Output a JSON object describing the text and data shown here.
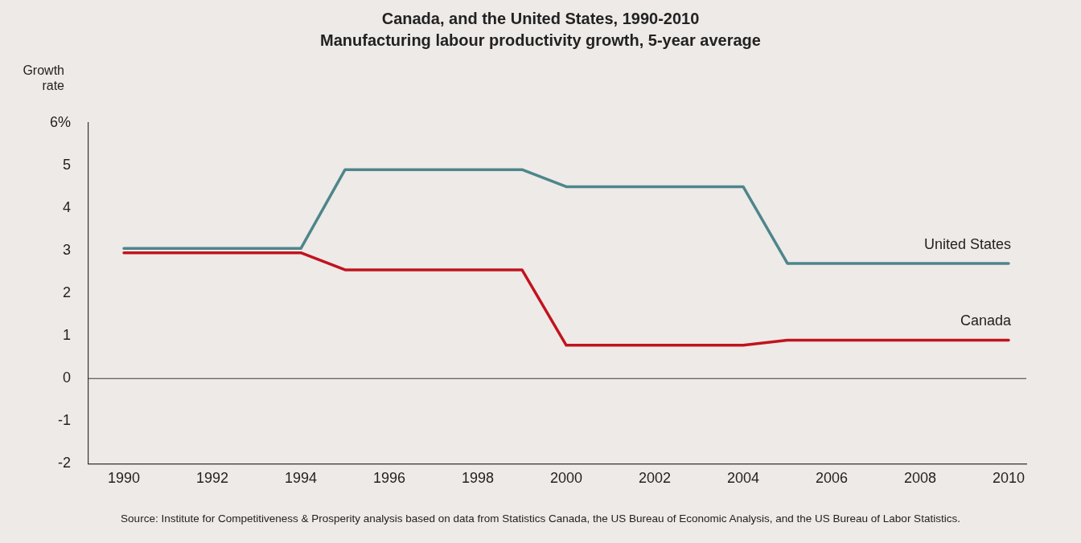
{
  "chart_data": {
    "type": "line",
    "title": "Canada, and the United States, 1990-2010",
    "subtitle": "Manufacturing labour productivity growth, 5-year average",
    "ylabel": "Growth rate",
    "x": [
      1990,
      1991,
      1992,
      1993,
      1994,
      1995,
      1996,
      1997,
      1998,
      1999,
      2000,
      2001,
      2002,
      2003,
      2004,
      2005,
      2006,
      2007,
      2008,
      2009,
      2010
    ],
    "series": [
      {
        "name": "United States",
        "color": "#4d868b",
        "values": [
          3.05,
          3.05,
          3.05,
          3.05,
          3.05,
          4.9,
          4.9,
          4.9,
          4.9,
          4.9,
          4.5,
          4.5,
          4.5,
          4.5,
          4.5,
          2.7,
          2.7,
          2.7,
          2.7,
          2.7,
          2.7
        ]
      },
      {
        "name": "Canada",
        "color": "#c0141e",
        "values": [
          2.95,
          2.95,
          2.95,
          2.95,
          2.95,
          2.55,
          2.55,
          2.55,
          2.55,
          2.55,
          0.78,
          0.78,
          0.78,
          0.78,
          0.78,
          0.9,
          0.9,
          0.9,
          0.9,
          0.9,
          0.9
        ]
      }
    ],
    "xlim": [
      1989.2,
      2010.4
    ],
    "xticks": [
      1990,
      1992,
      1994,
      1996,
      1998,
      2000,
      2002,
      2004,
      2006,
      2008,
      2010
    ],
    "ylim": [
      -2,
      6
    ],
    "yticks": [
      -2,
      -1,
      0,
      1,
      2,
      3,
      4,
      5,
      {
        "value": 6,
        "label": "6%"
      }
    ],
    "ref_lines": [
      {
        "axis": "y",
        "value": 0,
        "color": "#3a3a3a"
      }
    ],
    "marker": "none",
    "line_style": "solid",
    "annotations": [
      "Source: Institute for Competitiveness & Prosperity analysis based on data from Statistics Canada, the US Bureau of Economic Analysis, and the US Bureau of Labor Statistics."
    ]
  }
}
